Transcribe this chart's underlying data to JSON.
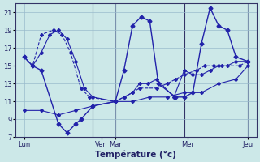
{
  "xlabel": "Température (°c)",
  "bg_color": "#cce8e8",
  "line_color": "#2222aa",
  "grid_color": "#99bbcc",
  "ylim": [
    7,
    22
  ],
  "yticks": [
    7,
    9,
    11,
    13,
    15,
    17,
    19,
    21
  ],
  "xlim": [
    0,
    14
  ],
  "day_positions": [
    0.5,
    5.0,
    5.8,
    10.0,
    13.5
  ],
  "day_labels": [
    "Lun",
    "Ven",
    "Mar",
    "Mer",
    "Jeu"
  ],
  "vline_positions": [
    4.5,
    5.8,
    9.8,
    13.5
  ],
  "line1_x": [
    0.5,
    1.0,
    1.5,
    2.2,
    2.7,
    3.2,
    3.8,
    4.3,
    5.8,
    6.3,
    6.8,
    7.2,
    8.2,
    8.8,
    9.3,
    9.8,
    10.5,
    11.0,
    11.5,
    12.0,
    13.0,
    13.5
  ],
  "line1_y": [
    16.0,
    15.0,
    18.5,
    19.0,
    18.5,
    16.5,
    12.5,
    11.5,
    11.0,
    11.5,
    12.0,
    12.5,
    12.5,
    13.0,
    13.5,
    14.0,
    14.5,
    15.0,
    15.0,
    15.0,
    15.0,
    15.5
  ],
  "line2_x": [
    0.5,
    1.0,
    1.5,
    2.0,
    2.5,
    3.0,
    3.5,
    4.0,
    4.5,
    5.8,
    6.3,
    6.8,
    7.2,
    7.7,
    8.2,
    9.2,
    9.8,
    10.3,
    10.8,
    11.3,
    11.8,
    12.3,
    12.8,
    13.5
  ],
  "line2_y": [
    16.0,
    15.0,
    16.5,
    18.5,
    19.0,
    18.0,
    15.5,
    12.5,
    11.5,
    11.0,
    11.5,
    12.0,
    13.0,
    13.0,
    13.5,
    11.5,
    14.5,
    14.0,
    14.0,
    14.5,
    15.0,
    15.0,
    15.5,
    15.5
  ],
  "line3_x": [
    0.5,
    1.0,
    1.5,
    2.5,
    3.0,
    3.5,
    3.8,
    4.5,
    5.8,
    6.3,
    6.8,
    7.3,
    7.8,
    8.3,
    9.3,
    9.8,
    10.3,
    10.8,
    11.3,
    11.8,
    12.3,
    12.8,
    13.5
  ],
  "line3_y": [
    16.0,
    15.0,
    14.5,
    8.5,
    7.5,
    8.5,
    9.0,
    10.5,
    11.0,
    14.5,
    19.5,
    20.5,
    20.0,
    13.0,
    11.5,
    11.5,
    12.0,
    17.5,
    21.5,
    19.5,
    19.0,
    16.0,
    15.5
  ],
  "line4_x": [
    0.5,
    1.5,
    2.5,
    3.5,
    4.5,
    5.8,
    6.8,
    7.8,
    8.8,
    9.8,
    10.8,
    11.8,
    12.8,
    13.5
  ],
  "line4_y": [
    10.0,
    10.0,
    9.5,
    10.0,
    10.5,
    11.0,
    11.0,
    11.5,
    11.5,
    12.0,
    12.0,
    13.0,
    13.5,
    15.0
  ]
}
